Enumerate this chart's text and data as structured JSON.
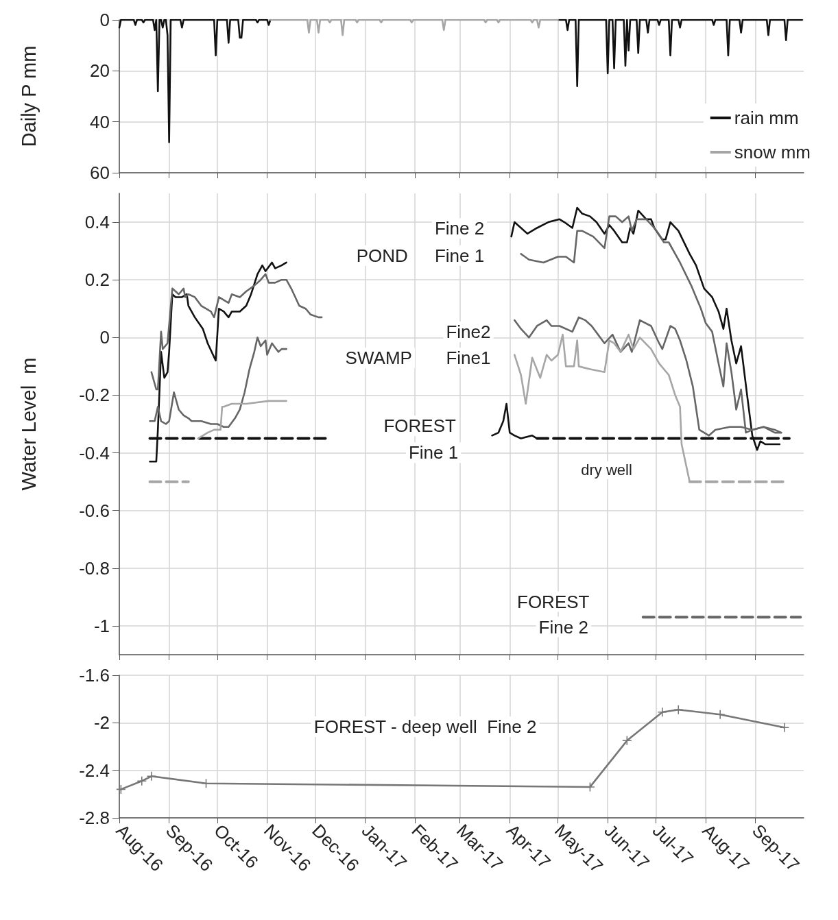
{
  "chart_data": [
    {
      "type": "line",
      "ylabel": "Daily P mm",
      "ylim": [
        60,
        0
      ],
      "yticks": [
        0,
        20,
        40,
        60
      ],
      "xlim": [
        "2016-08-01",
        "2017-10-01"
      ],
      "xticks": [
        {
          "value": "2016-08-01",
          "label": null
        },
        {
          "value": "2016-09-01",
          "label": null
        },
        {
          "value": "2016-10-01",
          "label": null
        },
        {
          "value": "2016-11-01",
          "label": null
        },
        {
          "value": "2016-12-01",
          "label": null
        },
        {
          "value": "2017-01-01",
          "label": null
        },
        {
          "value": "2017-02-01",
          "label": null
        },
        {
          "value": "2017-03-01",
          "label": null
        },
        {
          "value": "2017-04-01",
          "label": null
        },
        {
          "value": "2017-05-01",
          "label": null
        },
        {
          "value": "2017-06-01",
          "label": null
        },
        {
          "value": "2017-07-01",
          "label": null
        },
        {
          "value": "2017-08-01",
          "label": null
        },
        {
          "value": "2017-09-01",
          "label": null
        }
      ],
      "tick_labels": "y",
      "grid": true,
      "legend": "bottom right",
      "marker": "none",
      "series": [
        {
          "name": "rain mm",
          "color": "#111111",
          "x": [
            "2016-08-01",
            "2016-08-02",
            "2016-08-10",
            "2016-08-11",
            "2016-08-12",
            "2016-08-15",
            "2016-08-16",
            "2016-08-17",
            "2016-08-22",
            "2016-08-23",
            "2016-08-24",
            "2016-08-25",
            "2016-08-26",
            "2016-08-27",
            "2016-08-28",
            "2016-08-29",
            "2016-08-30",
            "2016-08-31",
            "2016-09-01",
            "2016-09-02",
            "2016-09-08",
            "2016-09-09",
            "2016-09-10",
            "2016-09-29",
            "2016-09-30",
            "2016-10-01",
            "2016-10-07",
            "2016-10-08",
            "2016-10-09",
            "2016-10-14",
            "2016-10-15",
            "2016-10-16",
            "2016-10-17",
            "2016-10-25",
            "2016-10-26",
            "2016-10-27",
            "2016-11-01",
            "2016-11-02",
            "2016-11-03",
            "2016-12-01",
            "2017-05-01",
            "2017-05-06",
            "2017-05-07",
            "2017-05-08",
            "2017-05-12",
            "2017-05-13",
            "2017-05-14",
            "2017-05-31",
            "2017-06-01",
            "2017-06-02",
            "2017-06-04",
            "2017-06-05",
            "2017-06-06",
            "2017-06-11",
            "2017-06-12",
            "2017-06-13",
            "2017-06-14",
            "2017-06-15",
            "2017-06-19",
            "2017-06-20",
            "2017-06-21",
            "2017-06-25",
            "2017-06-26",
            "2017-06-27",
            "2017-07-02",
            "2017-07-03",
            "2017-07-04",
            "2017-07-09",
            "2017-07-10",
            "2017-07-11",
            "2017-07-15",
            "2017-07-16",
            "2017-07-17",
            "2017-08-05",
            "2017-08-06",
            "2017-08-07",
            "2017-08-14",
            "2017-08-15",
            "2017-08-16",
            "2017-08-22",
            "2017-08-23",
            "2017-08-24",
            "2017-09-08",
            "2017-09-09",
            "2017-09-10",
            "2017-09-19",
            "2017-09-20",
            "2017-09-21",
            "2017-09-30"
          ],
          "values": [
            3,
            0,
            0,
            2,
            0,
            0,
            1,
            0,
            0,
            4,
            0,
            28,
            0,
            0,
            3,
            0,
            0,
            6,
            48,
            0,
            0,
            3,
            0,
            0,
            14,
            0,
            0,
            9,
            0,
            0,
            7,
            7,
            0,
            0,
            1,
            0,
            0,
            2,
            0,
            null,
            0,
            0,
            4,
            0,
            0,
            26,
            0,
            0,
            21,
            0,
            0,
            19,
            0,
            0,
            18,
            0,
            12,
            0,
            0,
            13,
            0,
            0,
            5,
            0,
            0,
            2,
            0,
            0,
            14,
            0,
            0,
            3,
            0,
            0,
            2,
            0,
            0,
            14,
            0,
            0,
            5,
            0,
            0,
            6,
            0,
            0,
            8,
            0,
            0
          ]
        },
        {
          "name": "snow mm",
          "color": "#a6a6a6",
          "x": [
            "2016-11-03",
            "2016-11-26",
            "2016-11-27",
            "2016-11-28",
            "2016-12-02",
            "2016-12-03",
            "2016-12-04",
            "2016-12-09",
            "2016-12-10",
            "2016-12-11",
            "2016-12-17",
            "2016-12-18",
            "2016-12-19",
            "2016-12-26",
            "2016-12-27",
            "2016-12-28",
            "2017-01-10",
            "2017-01-11",
            "2017-01-12",
            "2017-01-29",
            "2017-01-30",
            "2017-01-31",
            "2017-02-18",
            "2017-02-19",
            "2017-02-20",
            "2017-03-16",
            "2017-03-17",
            "2017-03-18",
            "2017-03-24",
            "2017-03-25",
            "2017-03-26",
            "2017-04-14",
            "2017-04-15",
            "2017-04-16",
            "2017-04-18",
            "2017-04-19",
            "2017-04-20",
            "2017-05-01"
          ],
          "values": [
            0,
            0,
            5,
            0,
            0,
            5,
            0,
            0,
            1,
            0,
            0,
            6,
            0,
            0,
            1,
            0,
            0,
            1,
            0,
            0,
            1,
            0,
            0,
            4,
            0,
            0,
            1,
            0,
            0,
            1,
            0,
            0,
            1,
            0,
            0,
            3,
            0,
            0
          ]
        }
      ]
    },
    {
      "type": "line",
      "ylabel": "Water Level  m",
      "ylim": [
        -1.1,
        0.5
      ],
      "yticks": [
        -1,
        -0.8,
        -0.6,
        -0.4,
        -0.2,
        0,
        0.2,
        0.4
      ],
      "xlim": [
        "2016-08-01",
        "2017-10-01"
      ],
      "xticks": [
        {
          "value": "2016-08-01",
          "label": null
        },
        {
          "value": "2016-09-01",
          "label": null
        },
        {
          "value": "2016-10-01",
          "label": null
        },
        {
          "value": "2016-11-01",
          "label": null
        },
        {
          "value": "2016-12-01",
          "label": null
        },
        {
          "value": "2017-01-01",
          "label": null
        },
        {
          "value": "2017-02-01",
          "label": null
        },
        {
          "value": "2017-03-01",
          "label": null
        },
        {
          "value": "2017-04-01",
          "label": null
        },
        {
          "value": "2017-05-01",
          "label": null
        },
        {
          "value": "2017-06-01",
          "label": null
        },
        {
          "value": "2017-07-01",
          "label": null
        },
        {
          "value": "2017-08-01",
          "label": null
        },
        {
          "value": "2017-09-01",
          "label": null
        }
      ],
      "tick_labels": "y",
      "grid": true,
      "marker": "none",
      "annotations": [
        "Fine 2",
        "POND",
        "Fine 1",
        "Fine2",
        "SWAMP",
        "Fine1",
        "FOREST",
        "Fine 1",
        "dry well",
        "FOREST",
        "Fine 2"
      ],
      "series": [
        {
          "color": "#111111",
          "x": [
            "2016-08-20",
            "2016-08-24",
            "2016-08-25",
            "2016-08-27",
            "2016-08-29",
            "2016-08-31",
            "2016-09-01",
            "2016-09-03",
            "2016-09-05",
            "2016-09-09",
            "2016-09-12",
            "2016-09-13",
            "2016-09-17",
            "2016-09-22",
            "2016-09-25",
            "2016-09-30",
            "2016-10-02",
            "2016-10-05",
            "2016-10-08",
            "2016-10-10",
            "2016-10-15",
            "2016-10-19",
            "2016-10-22",
            "2016-10-26",
            "2016-10-29",
            "2016-10-31",
            "2016-11-04",
            "2016-11-06",
            "2016-11-10",
            "2016-11-13",
            "2017-01-01",
            "2017-04-02",
            "2017-04-04",
            "2017-04-06",
            "2017-04-12",
            "2017-04-18",
            "2017-04-25",
            "2017-05-02",
            "2017-05-05",
            "2017-05-10",
            "2017-05-13",
            "2017-05-16",
            "2017-05-21",
            "2017-05-25",
            "2017-05-30",
            "2017-06-02",
            "2017-06-05",
            "2017-06-10",
            "2017-06-13",
            "2017-06-15",
            "2017-06-17",
            "2017-06-20",
            "2017-06-25",
            "2017-06-28",
            "2017-06-30",
            "2017-07-05",
            "2017-07-07",
            "2017-07-10",
            "2017-07-15",
            "2017-07-22",
            "2017-07-26",
            "2017-07-31",
            "2017-08-05",
            "2017-08-09",
            "2017-08-12",
            "2017-08-14",
            "2017-08-17",
            "2017-08-20",
            "2017-08-23",
            "2017-08-27",
            "2017-08-30",
            "2017-09-02",
            "2017-09-04",
            "2017-09-07",
            "2017-09-12",
            "2017-09-16"
          ],
          "values": [
            -0.43,
            -0.43,
            -0.32,
            -0.05,
            -0.14,
            -0.12,
            -0.05,
            0.15,
            0.14,
            0.14,
            0.15,
            0.11,
            0.07,
            0.03,
            -0.02,
            -0.08,
            0.1,
            0.09,
            0.07,
            0.09,
            0.09,
            0.11,
            0.15,
            0.22,
            0.25,
            0.23,
            0.26,
            0.24,
            0.25,
            0.26,
            null,
            0.35,
            0.4,
            0.39,
            0.36,
            0.38,
            0.4,
            0.41,
            0.4,
            0.38,
            0.45,
            0.43,
            0.42,
            0.4,
            0.36,
            0.39,
            0.37,
            0.33,
            0.33,
            0.38,
            0.36,
            0.44,
            0.41,
            0.41,
            0.38,
            0.34,
            0.34,
            0.4,
            0.37,
            0.29,
            0.25,
            0.17,
            0.14,
            0.09,
            0.03,
            0.1,
            -0.01,
            -0.09,
            -0.03,
            -0.21,
            -0.34,
            -0.39,
            -0.36,
            -0.37,
            -0.37,
            -0.37
          ]
        },
        {
          "color": "#666666",
          "x": [
            "2016-08-21",
            "2016-08-24",
            "2016-08-25",
            "2016-08-27",
            "2016-08-28",
            "2016-08-31",
            "2016-09-03",
            "2016-09-07",
            "2016-09-10",
            "2016-09-11",
            "2016-09-13",
            "2016-09-17",
            "2016-09-21",
            "2016-09-27",
            "2016-09-29",
            "2016-10-02",
            "2016-10-05",
            "2016-10-08",
            "2016-10-10",
            "2016-10-15",
            "2016-10-19",
            "2016-10-24",
            "2016-10-28",
            "2016-10-31",
            "2016-11-02",
            "2016-11-06",
            "2016-11-10",
            "2016-11-13",
            "2016-11-16",
            "2016-11-21",
            "2016-11-25",
            "2016-11-28",
            "2016-12-03",
            "2016-12-05",
            "2017-01-01",
            "2017-04-08",
            "2017-04-13",
            "2017-04-22",
            "2017-05-01",
            "2017-05-06",
            "2017-05-11",
            "2017-05-13",
            "2017-05-16",
            "2017-05-23",
            "2017-05-30",
            "2017-06-02",
            "2017-06-06",
            "2017-06-10",
            "2017-06-14",
            "2017-06-16",
            "2017-06-19",
            "2017-06-25",
            "2017-06-30",
            "2017-07-06",
            "2017-07-09",
            "2017-07-16",
            "2017-07-23",
            "2017-07-29",
            "2017-08-01",
            "2017-08-05",
            "2017-08-09",
            "2017-08-12",
            "2017-08-14",
            "2017-08-17",
            "2017-08-20",
            "2017-08-23",
            "2017-08-26",
            "2017-08-30",
            "2017-09-06",
            "2017-09-13",
            "2017-09-17"
          ],
          "values": [
            -0.12,
            -0.18,
            -0.18,
            0.02,
            -0.04,
            -0.02,
            0.17,
            0.15,
            0.17,
            0.14,
            0.15,
            0.14,
            0.11,
            0.09,
            0.07,
            0.14,
            0.13,
            0.12,
            0.15,
            0.14,
            0.16,
            0.18,
            0.2,
            0.22,
            0.19,
            0.19,
            0.2,
            0.2,
            0.17,
            0.11,
            0.1,
            0.08,
            0.07,
            0.07,
            null,
            0.29,
            0.27,
            0.26,
            0.28,
            0.28,
            0.26,
            0.37,
            0.37,
            0.35,
            0.31,
            0.42,
            0.42,
            0.4,
            0.42,
            0.37,
            0.41,
            0.41,
            0.38,
            0.33,
            0.33,
            0.26,
            0.18,
            0.1,
            0.05,
            0.02,
            -0.09,
            -0.17,
            -0.02,
            -0.12,
            -0.25,
            -0.18,
            -0.33,
            -0.32,
            -0.31,
            -0.32,
            -0.33
          ]
        },
        {
          "color": "#666666",
          "x": [
            "2016-08-20",
            "2016-08-23",
            "2016-08-25",
            "2016-08-27",
            "2016-08-30",
            "2016-09-01",
            "2016-09-04",
            "2016-09-07",
            "2016-09-10",
            "2016-09-13",
            "2016-09-15",
            "2016-09-21",
            "2016-09-27",
            "2016-10-01",
            "2016-10-05",
            "2016-10-08",
            "2016-10-12",
            "2016-10-15",
            "2016-10-18",
            "2016-10-21",
            "2016-10-24",
            "2016-10-26",
            "2016-10-28",
            "2016-10-31",
            "2016-11-01",
            "2016-11-04",
            "2016-11-08",
            "2016-11-10",
            "2016-11-13",
            "2017-01-01",
            "2017-04-04",
            "2017-04-08",
            "2017-04-13",
            "2017-04-18",
            "2017-04-24",
            "2017-04-27",
            "2017-05-02",
            "2017-05-10",
            "2017-05-14",
            "2017-05-18",
            "2017-05-22",
            "2017-05-26",
            "2017-05-30",
            "2017-06-04",
            "2017-06-09",
            "2017-06-14",
            "2017-06-16",
            "2017-06-21",
            "2017-06-28",
            "2017-07-03",
            "2017-07-05",
            "2017-07-10",
            "2017-07-13",
            "2017-07-16",
            "2017-07-20",
            "2017-07-24",
            "2017-07-28",
            "2017-08-03",
            "2017-08-07",
            "2017-08-16",
            "2017-08-23",
            "2017-08-30",
            "2017-09-06",
            "2017-09-13",
            "2017-09-17"
          ],
          "values": [
            -0.29,
            -0.29,
            -0.24,
            -0.29,
            -0.3,
            -0.29,
            -0.19,
            -0.25,
            -0.27,
            -0.28,
            -0.29,
            -0.29,
            -0.3,
            -0.3,
            -0.31,
            -0.31,
            -0.28,
            -0.25,
            -0.19,
            -0.11,
            -0.05,
            0,
            -0.03,
            -0.01,
            -0.06,
            -0.02,
            -0.05,
            -0.04,
            -0.04,
            null,
            0.06,
            0.03,
            0,
            0.04,
            0.06,
            0.04,
            0.04,
            0.02,
            0.07,
            0.06,
            0.04,
            0.01,
            -0.02,
            0.01,
            -0.05,
            -0.02,
            -0.05,
            0.06,
            0.04,
            -0.02,
            -0.04,
            0.04,
            0.03,
            -0.01,
            -0.08,
            -0.17,
            -0.32,
            -0.34,
            -0.32,
            -0.31,
            -0.31,
            -0.32,
            -0.31,
            -0.33,
            -0.33
          ]
        },
        {
          "color": "#a6a6a6",
          "x": [
            "2016-09-19",
            "2016-09-25",
            "2016-09-29",
            "2016-10-03",
            "2016-10-04",
            "2016-10-05",
            "2016-10-10",
            "2016-10-19",
            "2016-11-02",
            "2016-11-13",
            "2017-01-01",
            "2017-04-04",
            "2017-04-08",
            "2017-04-11",
            "2017-04-15",
            "2017-04-20",
            "2017-04-24",
            "2017-04-27",
            "2017-05-01",
            "2017-05-04",
            "2017-05-06",
            "2017-05-11",
            "2017-05-13",
            "2017-05-14",
            "2017-05-21",
            "2017-05-30",
            "2017-06-02",
            "2017-06-05",
            "2017-06-09",
            "2017-06-14",
            "2017-06-17",
            "2017-06-21",
            "2017-06-28",
            "2017-07-03",
            "2017-07-09",
            "2017-07-13",
            "2017-07-16",
            "2017-07-17",
            "2017-07-22"
          ],
          "values": [
            -0.35,
            -0.33,
            -0.32,
            -0.32,
            -0.24,
            -0.24,
            -0.23,
            -0.23,
            -0.22,
            -0.22,
            null,
            -0.06,
            -0.13,
            -0.23,
            -0.07,
            -0.14,
            -0.06,
            -0.08,
            -0.06,
            0.01,
            -0.1,
            -0.1,
            -0.01,
            -0.1,
            -0.11,
            -0.12,
            -0.01,
            -0.02,
            -0.05,
            0.01,
            -0.04,
            0,
            -0.04,
            -0.09,
            -0.13,
            -0.2,
            -0.24,
            -0.37,
            -0.5
          ]
        },
        {
          "color": "#111111",
          "x": [
            "2017-03-21",
            "2017-03-25",
            "2017-03-28",
            "2017-03-30",
            "2017-04-01",
            "2017-04-04",
            "2017-04-08",
            "2017-04-15",
            "2017-04-18"
          ],
          "values": [
            -0.34,
            -0.33,
            -0.29,
            -0.23,
            -0.33,
            -0.34,
            -0.35,
            -0.34,
            -0.35
          ]
        },
        {
          "color": "#111111",
          "line_style": "dashed",
          "x": [
            "2016-08-20",
            "2016-12-08",
            "2017-01-01",
            "2017-04-18",
            "2017-09-22"
          ],
          "values": [
            -0.35,
            -0.35,
            null,
            -0.35,
            -0.35
          ]
        },
        {
          "color": "#a6a6a6",
          "line_style": "dashed",
          "x": [
            "2016-08-20",
            "2016-09-13",
            "2017-01-01",
            "2017-07-22",
            "2017-09-20"
          ],
          "values": [
            -0.5,
            -0.5,
            null,
            -0.5,
            -0.5
          ]
        },
        {
          "color": "#666666",
          "line_style": "dashed",
          "x": [
            "2017-06-23",
            "2017-09-29"
          ],
          "values": [
            -0.97,
            -0.97
          ]
        }
      ]
    },
    {
      "type": "line",
      "ylim": [
        -2.8,
        -1.6
      ],
      "yticks": [
        -2.8,
        -2.4,
        -2,
        -1.6
      ],
      "xlim": [
        "2016-08-01",
        "2017-10-01"
      ],
      "xticks": [
        {
          "value": "2016-08-01",
          "label": "Aug-16"
        },
        {
          "value": "2016-09-01",
          "label": "Sep-16"
        },
        {
          "value": "2016-10-01",
          "label": "Oct-16"
        },
        {
          "value": "2016-11-01",
          "label": "Nov-16"
        },
        {
          "value": "2016-12-01",
          "label": "Dec-16"
        },
        {
          "value": "2017-01-01",
          "label": "Jan-17"
        },
        {
          "value": "2017-02-01",
          "label": "Feb-17"
        },
        {
          "value": "2017-03-01",
          "label": "Mar-17"
        },
        {
          "value": "2017-04-01",
          "label": "Apr-17"
        },
        {
          "value": "2017-05-01",
          "label": "May-17"
        },
        {
          "value": "2017-06-01",
          "label": "Jun-17"
        },
        {
          "value": "2017-07-01",
          "label": "Jul-17"
        },
        {
          "value": "2017-08-01",
          "label": "Aug-17"
        },
        {
          "value": "2017-09-01",
          "label": "Sep-17"
        }
      ],
      "grid": true,
      "marker": "cross",
      "annotations": [
        "FOREST - deep well  Fine 2"
      ],
      "series": [
        {
          "color": "#777777",
          "x": [
            "2016-08-02",
            "2016-08-15",
            "2016-08-21",
            "2016-09-24",
            "2017-05-21",
            "2017-06-13",
            "2017-07-05",
            "2017-07-15",
            "2017-08-10",
            "2017-09-19"
          ],
          "values": [
            -2.56,
            -2.49,
            -2.45,
            -2.51,
            -2.54,
            -2.15,
            -1.91,
            -1.89,
            -1.93,
            -2.04
          ]
        }
      ]
    }
  ]
}
